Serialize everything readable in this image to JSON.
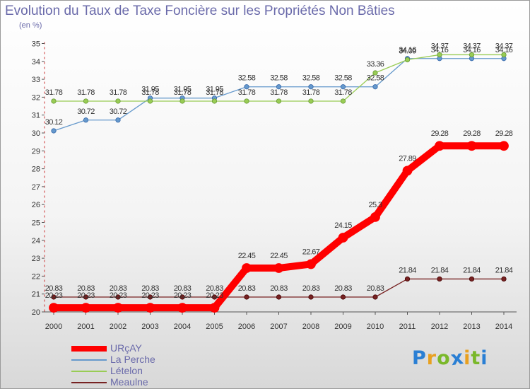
{
  "chart_data": {
    "type": "line",
    "title": "Evolution du Taux de Taxe Foncière sur les Propriétés Non Bâties",
    "ylabel": "(en %)",
    "xlabel": "",
    "x": [
      "2000",
      "2001",
      "2002",
      "2003",
      "2004",
      "2005",
      "2006",
      "2007",
      "2008",
      "2009",
      "2010",
      "2011",
      "2012",
      "2013",
      "2014"
    ],
    "ylim": [
      20,
      35
    ],
    "yticks": [
      20,
      21,
      22,
      23,
      24,
      25,
      26,
      27,
      28,
      29,
      30,
      31,
      32,
      33,
      34,
      35
    ],
    "grid": false,
    "legend_position": "bottom-left",
    "series": [
      {
        "name": "URçAY",
        "color": "#ff0000",
        "values": [
          20.23,
          20.23,
          20.23,
          20.23,
          20.23,
          20.23,
          22.45,
          22.45,
          22.67,
          24.15,
          25.3,
          27.89,
          29.28,
          29.28,
          29.28
        ],
        "labels": [
          "20.23",
          "20.23",
          "20.23",
          "20.23",
          "20.23",
          "20.23",
          "22.45",
          "22.45",
          "22.67",
          "24.15",
          "25.3",
          "27.89",
          "29.28",
          "29.28",
          "29.28"
        ]
      },
      {
        "name": "La Perche",
        "color": "#6699cc",
        "values": [
          30.12,
          30.72,
          30.72,
          31.95,
          31.95,
          31.95,
          32.58,
          32.58,
          32.58,
          32.58,
          32.58,
          34.16,
          34.16,
          34.16,
          34.16
        ],
        "labels": [
          "30.12",
          "30.72",
          "30.72",
          "31.95",
          "31.95",
          "31.95",
          "32.58",
          "32.58",
          "32.58",
          "32.58",
          "32.58",
          "34.16",
          "34.16",
          "34.16",
          "34.16"
        ]
      },
      {
        "name": "Lételon",
        "color": "#99cc55",
        "values": [
          31.78,
          31.78,
          31.78,
          31.78,
          31.78,
          31.78,
          31.78,
          31.78,
          31.78,
          31.78,
          33.36,
          34.09,
          34.37,
          34.37,
          34.37
        ],
        "labels": [
          "31.78",
          "31.78",
          "31.78",
          "31.78",
          "31.78",
          "31.78",
          "31.78",
          "31.78",
          "31.78",
          "31.78",
          "33.36",
          "34.09",
          "34.37",
          "34.37",
          "34.37"
        ]
      },
      {
        "name": "Meaulne",
        "color": "#772222",
        "values": [
          20.83,
          20.83,
          20.83,
          20.83,
          20.83,
          20.83,
          20.83,
          20.83,
          20.83,
          20.83,
          20.83,
          21.84,
          21.84,
          21.84,
          21.84
        ],
        "labels": [
          "20.83",
          "20.83",
          "20.83",
          "20.83",
          "20.83",
          "20.83",
          "20.83",
          "20.83",
          "20.83",
          "20.83",
          "20.83",
          "21.84",
          "21.84",
          "21.84",
          "21.84"
        ]
      }
    ]
  },
  "logo": {
    "letters": [
      "P",
      "r",
      "o",
      "x",
      "i",
      "t",
      "i"
    ],
    "colors": [
      "#2a7fd4",
      "#e8a020",
      "#7ab82a",
      "#2a7fd4",
      "#e8a020",
      "#7ab82a",
      "#2a7fd4"
    ]
  }
}
